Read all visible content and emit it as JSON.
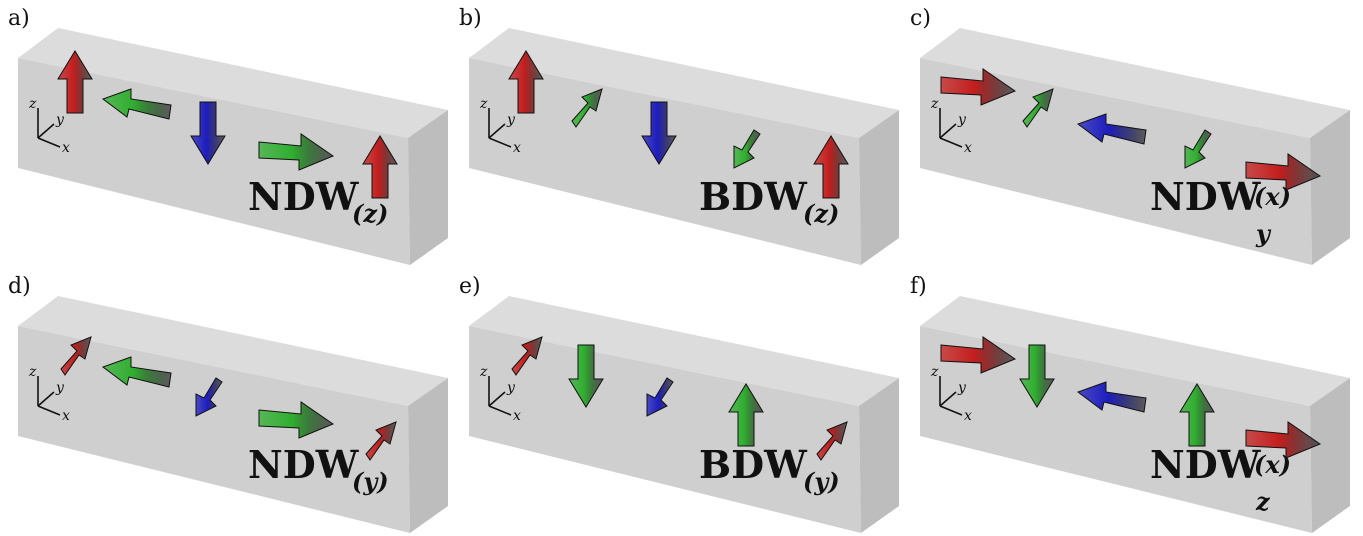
{
  "colors": {
    "red": "#c41e1e",
    "green": "#2fae2f",
    "blue": "#1d1dbe",
    "box_top": "#dcdcdc",
    "box_front": "#cfcfcf",
    "box_side": "#bdbdbd"
  },
  "axes": {
    "x": "x",
    "y": "y",
    "z": "z"
  },
  "panels": [
    {
      "letter": "a)",
      "label": "NDW",
      "sup": "(z)",
      "sub": "",
      "arrows": [
        {
          "color": "red",
          "dir": "up"
        },
        {
          "color": "green",
          "dir": "left"
        },
        {
          "color": "blue",
          "dir": "down"
        },
        {
          "color": "green",
          "dir": "right"
        },
        {
          "color": "red",
          "dir": "up"
        }
      ]
    },
    {
      "letter": "b)",
      "label": "BDW",
      "sup": "(z)",
      "sub": "",
      "arrows": [
        {
          "color": "red",
          "dir": "up"
        },
        {
          "color": "green",
          "dir": "back"
        },
        {
          "color": "blue",
          "dir": "down"
        },
        {
          "color": "green",
          "dir": "front"
        },
        {
          "color": "red",
          "dir": "up"
        }
      ]
    },
    {
      "letter": "c)",
      "label": "NDW",
      "sup": "(x)",
      "sub": "y",
      "arrows": [
        {
          "color": "red",
          "dir": "right"
        },
        {
          "color": "green",
          "dir": "back"
        },
        {
          "color": "blue",
          "dir": "left"
        },
        {
          "color": "green",
          "dir": "front"
        },
        {
          "color": "red",
          "dir": "right"
        }
      ]
    },
    {
      "letter": "d)",
      "label": "NDW",
      "sup": "(y)",
      "sub": "",
      "arrows": [
        {
          "color": "red",
          "dir": "back"
        },
        {
          "color": "green",
          "dir": "left"
        },
        {
          "color": "blue",
          "dir": "front"
        },
        {
          "color": "green",
          "dir": "right"
        },
        {
          "color": "red",
          "dir": "back"
        }
      ]
    },
    {
      "letter": "e)",
      "label": "BDW",
      "sup": "(y)",
      "sub": "",
      "arrows": [
        {
          "color": "red",
          "dir": "back"
        },
        {
          "color": "green",
          "dir": "down"
        },
        {
          "color": "blue",
          "dir": "front"
        },
        {
          "color": "green",
          "dir": "up"
        },
        {
          "color": "red",
          "dir": "back"
        }
      ]
    },
    {
      "letter": "f)",
      "label": "NDW",
      "sup": "(x)",
      "sub": "z",
      "arrows": [
        {
          "color": "red",
          "dir": "right"
        },
        {
          "color": "green",
          "dir": "down"
        },
        {
          "color": "blue",
          "dir": "left"
        },
        {
          "color": "green",
          "dir": "up"
        },
        {
          "color": "red",
          "dir": "right"
        }
      ]
    }
  ]
}
